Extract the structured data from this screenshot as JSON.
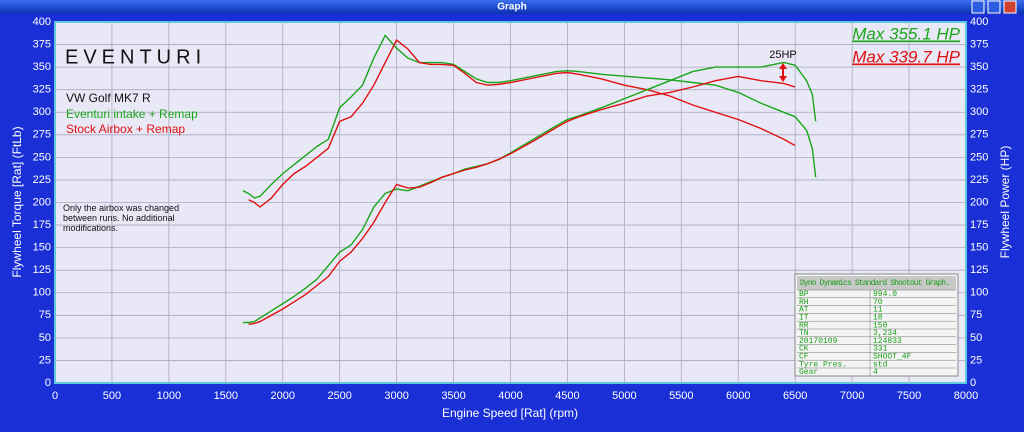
{
  "window_title": "Graph",
  "chart_data": {
    "type": "line",
    "x_label": "Engine Speed [Rat] (rpm)",
    "y_label": "Flywheel Torque [Rat] (FtLb)",
    "y2_label": "Flywheel Power (HP)",
    "logo": "EVENTURI",
    "vehicle": "VW Golf MK7 R",
    "note": "Only the airbox was changed between runs. No additional modifications.",
    "annotations": [
      "Max 355.1 HP",
      "Max 339.7 HP",
      "25HP"
    ],
    "grid": true,
    "xlim": [
      0,
      8000
    ],
    "xticks": [
      0,
      500,
      1000,
      1500,
      2000,
      2500,
      3000,
      3500,
      4000,
      4500,
      5000,
      5500,
      6000,
      6500,
      7000,
      7500,
      8000
    ],
    "ylim": [
      0,
      400
    ],
    "yticks": [
      0,
      25,
      50,
      75,
      100,
      125,
      150,
      175,
      200,
      225,
      250,
      275,
      300,
      325,
      350,
      375,
      400
    ],
    "y2lim": [
      0,
      400
    ],
    "y2ticks": [
      0,
      25,
      50,
      75,
      100,
      125,
      150,
      175,
      200,
      225,
      250,
      275,
      300,
      325,
      350,
      375,
      400
    ],
    "x": [
      1650,
      1700,
      1750,
      1800,
      1900,
      2000,
      2100,
      2200,
      2300,
      2400,
      2500,
      2600,
      2700,
      2800,
      2900,
      3000,
      3100,
      3200,
      3300,
      3400,
      3500,
      3600,
      3700,
      3800,
      3900,
      4000,
      4200,
      4400,
      4500,
      4600,
      4800,
      5000,
      5200,
      5400,
      5600,
      5800,
      6000,
      6200,
      6400,
      6500,
      6600,
      6650,
      6680
    ],
    "series": [
      {
        "name": "Eventuri intake + Remap",
        "color": "#1aa61a",
        "values": [
          213,
          210,
          205,
          207,
          220,
          232,
          242,
          252,
          262,
          270,
          305,
          317,
          330,
          360,
          385,
          371,
          360,
          355,
          355,
          355,
          353,
          345,
          337,
          333,
          333,
          335,
          340,
          345,
          346,
          345,
          342,
          340,
          338,
          336,
          333,
          330,
          322,
          310,
          300,
          295,
          280,
          260,
          228
        ]
      },
      {
        "name": "Stock Airbox + Remap",
        "color": "#e01010",
        "values": [
          null,
          203,
          200,
          195,
          205,
          220,
          232,
          240,
          250,
          260,
          290,
          295,
          310,
          330,
          355,
          380,
          370,
          355,
          353,
          353,
          352,
          343,
          333,
          330,
          331,
          333,
          338,
          343,
          344,
          342,
          337,
          330,
          325,
          318,
          308,
          300,
          292,
          282,
          270,
          263,
          null,
          null,
          null
        ]
      },
      {
        "axis": "y2",
        "color": "#1aa61a",
        "values": [
          67,
          67,
          68,
          72,
          80,
          88,
          96,
          105,
          115,
          130,
          145,
          153,
          170,
          195,
          210,
          215,
          213,
          218,
          223,
          228,
          232,
          237,
          240,
          243,
          248,
          255,
          270,
          285,
          292,
          296,
          305,
          315,
          325,
          335,
          345,
          350,
          350,
          350,
          355.1,
          352,
          335,
          320,
          290
        ]
      },
      {
        "axis": "y2",
        "color": "#e01010",
        "values": [
          null,
          65,
          66,
          68,
          75,
          82,
          90,
          98,
          108,
          118,
          135,
          145,
          160,
          178,
          200,
          220,
          216,
          217,
          222,
          228,
          232,
          236,
          239,
          243,
          248,
          254,
          268,
          283,
          290,
          295,
          303,
          310,
          318,
          322,
          328,
          335,
          339.7,
          335,
          332,
          328,
          null,
          null,
          null
        ]
      }
    ],
    "info_table": {
      "title": "Dyno Dynamics Standard Shootout Graph.",
      "rows": [
        [
          "BP",
          "994.0"
        ],
        [
          "RH",
          "70"
        ],
        [
          "AT",
          "11"
        ],
        [
          "IT",
          "18"
        ],
        [
          "RR",
          "150"
        ],
        [
          "TN",
          "3,234"
        ],
        [
          "20170109",
          "124833"
        ],
        [
          "CK",
          "331"
        ],
        [
          "CF",
          "SHOOT_4F"
        ],
        [
          "Tyre Pres.",
          "std"
        ],
        [
          "Gear",
          "4"
        ]
      ]
    }
  }
}
